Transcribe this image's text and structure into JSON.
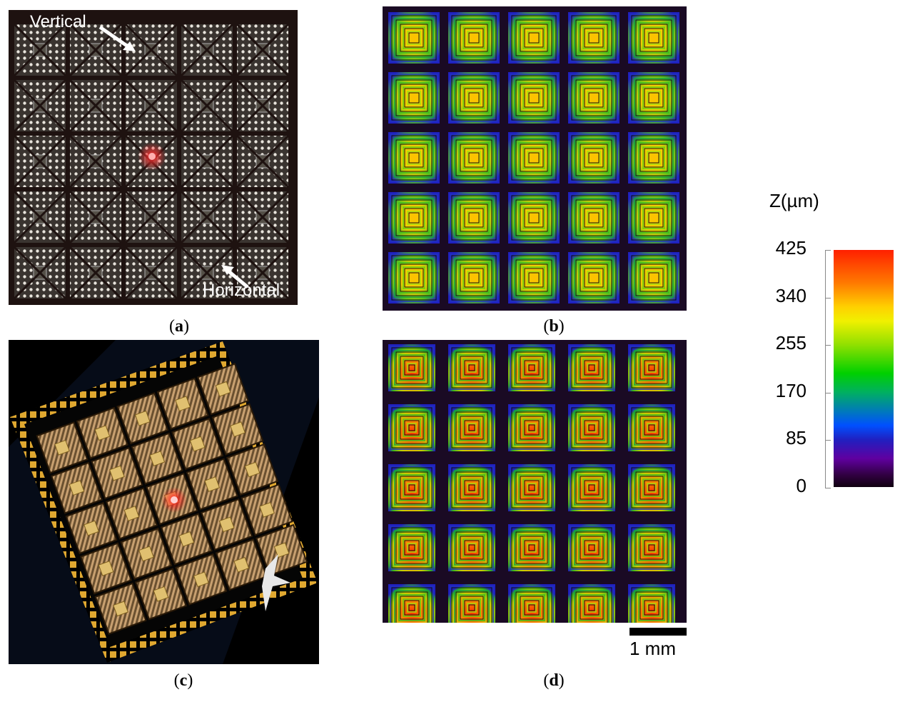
{
  "panels": {
    "a": {
      "caption": "a",
      "label_vertical": "Vertical",
      "label_horizontal": "Horizontal"
    },
    "b": {
      "caption": "b"
    },
    "c": {
      "caption": "c"
    },
    "d": {
      "caption": "d",
      "scale_bar": "1 mm"
    }
  },
  "colorbar": {
    "title": "Z(µm)",
    "ticks": [
      "425",
      "340",
      "255",
      "170",
      "85",
      "0"
    ]
  }
}
